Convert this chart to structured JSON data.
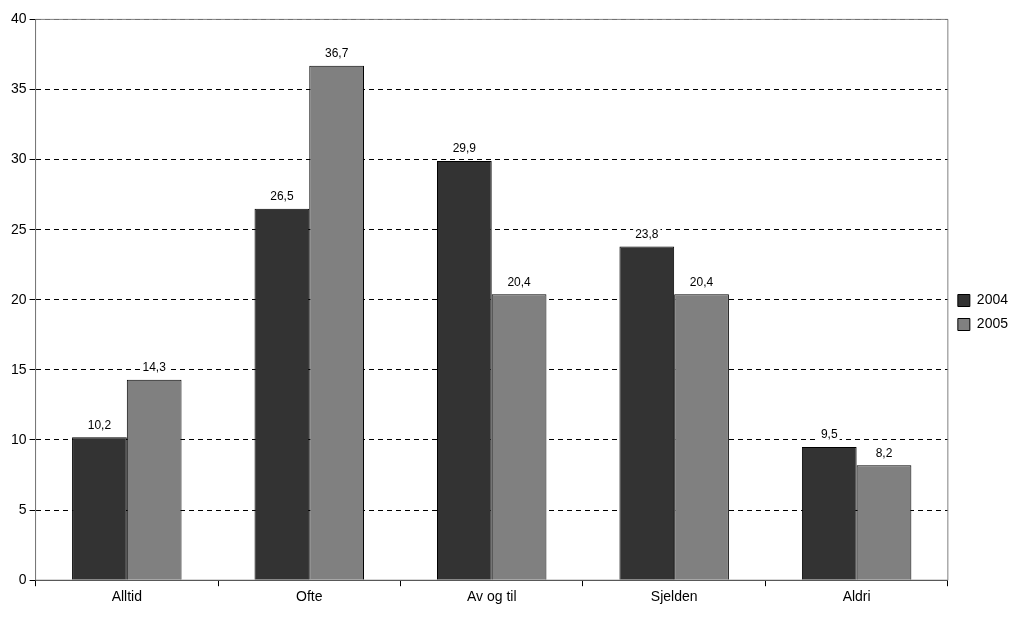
{
  "chart_data": {
    "type": "bar",
    "categories": [
      "Alltid",
      "Ofte",
      "Av og til",
      "Sjelden",
      "Aldri"
    ],
    "series": [
      {
        "name": "2004",
        "color": "#333333",
        "values": [
          10.2,
          26.5,
          29.9,
          23.8,
          9.5
        ],
        "value_labels": [
          "10,2",
          "26,5",
          "29,9",
          "23,8",
          "9,5"
        ]
      },
      {
        "name": "2005",
        "color": "#808080",
        "values": [
          14.3,
          36.7,
          20.4,
          20.4,
          8.2
        ],
        "value_labels": [
          "14,3",
          "36,7",
          "20,4",
          "20,4",
          "8,2"
        ]
      }
    ],
    "ylim": [
      0,
      40
    ],
    "yticks": [
      0,
      5,
      10,
      15,
      20,
      25,
      30,
      35,
      40
    ],
    "grid": "y",
    "legend": "right",
    "line_style": "dashed"
  }
}
